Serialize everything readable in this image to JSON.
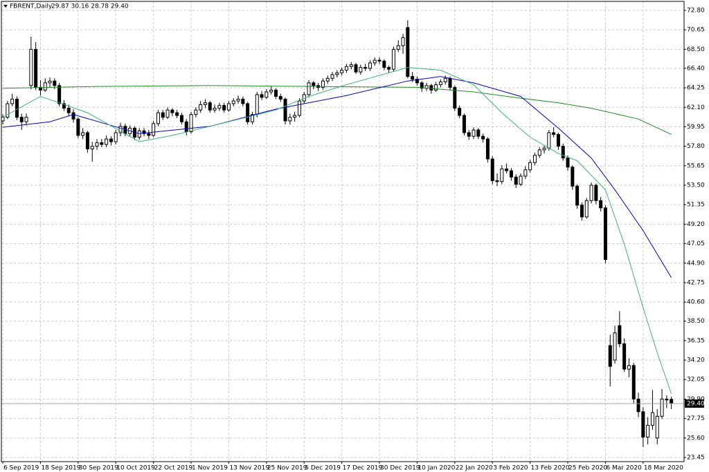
{
  "chart_data": {
    "type": "candlestick",
    "title": "FBRENT,Daily",
    "ohlc_label": "29.87 30.16 28.78 29.40",
    "xlim": [
      -0.3,
      144.7
    ],
    "ylim": [
      22.99,
      73.79
    ],
    "grid": true,
    "up_color": "#ffffff",
    "down_color": "#000000",
    "xticks": [
      {
        "value": 0,
        "label": "6 Sep 2019"
      },
      {
        "value": 8,
        "label": "18 Sep 2019"
      },
      {
        "value": 16,
        "label": "30 Sep 2019"
      },
      {
        "value": 24,
        "label": "10 Oct 2019"
      },
      {
        "value": 32,
        "label": "22 Oct 2019"
      },
      {
        "value": 40,
        "label": "1 Nov 2019"
      },
      {
        "value": 48,
        "label": "13 Nov 2019"
      },
      {
        "value": 56,
        "label": "25 Nov 2019"
      },
      {
        "value": 64,
        "label": "5 Dec 2019"
      },
      {
        "value": 72,
        "label": "17 Dec 2019"
      },
      {
        "value": 80,
        "label": "30 Dec 2019"
      },
      {
        "value": 88,
        "label": "10 Jan 2020"
      },
      {
        "value": 96,
        "label": "22 Jan 2020"
      },
      {
        "value": 104,
        "label": "3 Feb 2020"
      },
      {
        "value": 112,
        "label": "13 Feb 2020"
      },
      {
        "value": 120,
        "label": "25 Feb 2020"
      },
      {
        "value": 128,
        "label": "6 Mar 2020"
      },
      {
        "value": 136,
        "label": "18 Mar 2020"
      }
    ],
    "yticks": [
      {
        "value": 72.8,
        "label": "72.80"
      },
      70.65,
      {
        "value": 68.5,
        "label": "68.50"
      },
      {
        "value": 66.4,
        "label": "66.40"
      },
      {
        "value": 64.25,
        "label": "64.25"
      },
      {
        "value": 62.1,
        "label": "62.10"
      },
      59.95,
      {
        "value": 57.8,
        "label": "57.80"
      },
      55.65,
      {
        "value": 53.5,
        "label": "53.50"
      },
      51.35,
      {
        "value": 49.2,
        "label": "49.20"
      },
      47.05,
      {
        "value": 44.9,
        "label": "44.90"
      },
      42.75,
      {
        "value": 40.6,
        "label": "40.60"
      },
      {
        "value": 38.5,
        "label": "38.50"
      },
      36.35,
      {
        "value": 34.2,
        "label": "34.20"
      },
      32.05,
      {
        "value": 29.9,
        "label": "29.90"
      },
      27.75,
      {
        "value": 25.6,
        "label": "25.60"
      },
      23.45
    ],
    "last_price": {
      "value": 29.4,
      "label": "29.40"
    },
    "candles": [
      [
        60.6,
        61.3,
        60.2,
        61.0
      ],
      [
        61.0,
        62.8,
        60.8,
        62.5
      ],
      [
        62.5,
        63.6,
        62.2,
        63.0
      ],
      [
        63.0,
        63.3,
        60.7,
        61.0
      ],
      [
        61.0,
        61.4,
        59.6,
        60.5
      ],
      [
        60.5,
        61.4,
        60.1,
        61.0
      ],
      [
        64.5,
        69.9,
        64.1,
        68.5
      ],
      [
        68.5,
        69.3,
        64.0,
        64.3
      ],
      [
        64.3,
        65.1,
        63.4,
        64.0
      ],
      [
        64.0,
        65.3,
        63.8,
        64.8
      ],
      [
        64.8,
        65.4,
        64.3,
        65.0
      ],
      [
        65.0,
        65.3,
        64.1,
        64.5
      ],
      [
        64.5,
        64.8,
        62.2,
        62.5
      ],
      [
        62.5,
        62.9,
        61.7,
        62.0
      ],
      [
        62.0,
        62.4,
        61.1,
        61.5
      ],
      [
        61.5,
        61.9,
        60.4,
        60.8
      ],
      [
        60.8,
        61.0,
        58.7,
        59.0
      ],
      [
        59.0,
        59.8,
        58.6,
        59.3
      ],
      [
        59.3,
        59.5,
        57.1,
        57.5
      ],
      [
        57.5,
        58.3,
        56.1,
        57.8
      ],
      [
        57.8,
        58.6,
        57.4,
        58.2
      ],
      [
        58.2,
        58.6,
        57.7,
        58.0
      ],
      [
        58.0,
        59.0,
        57.7,
        58.6
      ],
      [
        58.6,
        58.9,
        57.9,
        58.3
      ],
      [
        58.3,
        59.6,
        58.0,
        59.3
      ],
      [
        59.3,
        60.4,
        58.9,
        60.0
      ],
      [
        60.0,
        60.3,
        58.9,
        59.2
      ],
      [
        59.2,
        60.1,
        58.9,
        59.8
      ],
      [
        59.8,
        60.0,
        58.5,
        58.8
      ],
      [
        58.8,
        59.8,
        58.5,
        59.5
      ],
      [
        59.5,
        59.8,
        58.9,
        59.2
      ],
      [
        59.2,
        59.6,
        58.6,
        59.0
      ],
      [
        59.0,
        60.6,
        58.8,
        60.3
      ],
      [
        60.3,
        61.8,
        60.0,
        61.5
      ],
      [
        61.5,
        61.8,
        60.7,
        61.0
      ],
      [
        61.0,
        62.1,
        60.8,
        61.8
      ],
      [
        61.8,
        62.0,
        61.1,
        61.5
      ],
      [
        61.5,
        61.8,
        60.9,
        61.2
      ],
      [
        61.2,
        61.5,
        60.2,
        60.5
      ],
      [
        60.5,
        60.8,
        59.0,
        59.4
      ],
      [
        59.4,
        61.6,
        59.2,
        61.3
      ],
      [
        61.3,
        62.1,
        61.0,
        61.8
      ],
      [
        61.8,
        62.8,
        61.5,
        62.4
      ],
      [
        62.4,
        63.0,
        62.0,
        62.6
      ],
      [
        62.6,
        62.8,
        61.5,
        61.8
      ],
      [
        61.8,
        62.4,
        61.5,
        62.0
      ],
      [
        62.0,
        62.6,
        61.7,
        62.3
      ],
      [
        62.3,
        62.6,
        61.5,
        61.8
      ],
      [
        61.8,
        62.8,
        61.6,
        62.5
      ],
      [
        62.5,
        63.1,
        62.2,
        62.8
      ],
      [
        62.8,
        63.4,
        62.5,
        63.0
      ],
      [
        63.0,
        63.3,
        62.2,
        62.5
      ],
      [
        62.5,
        62.7,
        60.2,
        60.5
      ],
      [
        60.5,
        61.6,
        60.2,
        61.3
      ],
      [
        61.3,
        63.8,
        61.0,
        63.5
      ],
      [
        63.5,
        63.9,
        62.9,
        63.2
      ],
      [
        63.2,
        64.1,
        63.0,
        63.8
      ],
      [
        63.8,
        64.4,
        63.5,
        64.0
      ],
      [
        64.0,
        64.2,
        63.0,
        63.3
      ],
      [
        63.3,
        63.6,
        62.7,
        63.0
      ],
      [
        63.0,
        63.2,
        60.2,
        60.6
      ],
      [
        60.6,
        61.4,
        60.2,
        61.0
      ],
      [
        61.0,
        61.6,
        60.5,
        61.2
      ],
      [
        61.2,
        63.1,
        61.0,
        62.8
      ],
      [
        62.8,
        63.8,
        62.5,
        63.5
      ],
      [
        63.5,
        65.1,
        63.2,
        64.8
      ],
      [
        64.8,
        65.0,
        64.1,
        64.5
      ],
      [
        64.5,
        64.8,
        63.9,
        64.3
      ],
      [
        64.3,
        65.3,
        64.0,
        65.0
      ],
      [
        65.0,
        65.6,
        64.7,
        65.3
      ],
      [
        65.3,
        66.0,
        65.0,
        65.7
      ],
      [
        65.7,
        66.2,
        65.4,
        65.9
      ],
      [
        65.9,
        66.5,
        65.6,
        66.2
      ],
      [
        66.2,
        66.9,
        65.9,
        66.6
      ],
      [
        66.6,
        67.1,
        66.3,
        66.8
      ],
      [
        66.8,
        67.0,
        65.8,
        66.0
      ],
      [
        66.0,
        66.8,
        65.7,
        66.5
      ],
      [
        66.5,
        66.9,
        66.1,
        66.4
      ],
      [
        66.4,
        67.3,
        66.1,
        67.0
      ],
      [
        67.0,
        67.6,
        66.7,
        67.3
      ],
      [
        67.3,
        67.6,
        66.9,
        67.2
      ],
      [
        67.2,
        67.4,
        66.2,
        66.5
      ],
      [
        66.5,
        66.7,
        65.9,
        66.3
      ],
      [
        66.3,
        68.8,
        66.0,
        68.5
      ],
      [
        68.5,
        69.5,
        68.2,
        68.9
      ],
      [
        68.9,
        70.2,
        68.0,
        69.8
      ],
      [
        70.9,
        71.7,
        65.3,
        65.5
      ],
      [
        65.5,
        66.0,
        64.9,
        65.2
      ],
      [
        65.2,
        65.5,
        64.5,
        64.8
      ],
      [
        64.8,
        65.0,
        63.8,
        64.2
      ],
      [
        64.2,
        64.8,
        63.9,
        64.5
      ],
      [
        64.5,
        64.7,
        63.6,
        64.0
      ],
      [
        64.0,
        64.9,
        63.8,
        64.6
      ],
      [
        64.6,
        65.2,
        64.3,
        64.9
      ],
      [
        64.9,
        65.6,
        64.6,
        65.3
      ],
      [
        65.3,
        65.5,
        64.0,
        64.3
      ],
      [
        64.3,
        64.5,
        61.7,
        62.0
      ],
      [
        62.0,
        62.3,
        60.9,
        61.2
      ],
      [
        61.2,
        61.4,
        59.0,
        59.3
      ],
      [
        59.3,
        59.6,
        58.5,
        58.9
      ],
      [
        58.9,
        59.9,
        58.6,
        59.6
      ],
      [
        59.6,
        59.8,
        58.6,
        58.9
      ],
      [
        58.9,
        59.2,
        58.2,
        58.6
      ],
      [
        58.6,
        58.8,
        56.0,
        56.4
      ],
      [
        56.4,
        56.7,
        53.6,
        54.0
      ],
      [
        54.0,
        54.8,
        53.4,
        53.9
      ],
      [
        53.9,
        55.7,
        53.6,
        55.3
      ],
      [
        55.3,
        55.9,
        54.8,
        55.1
      ],
      [
        55.1,
        55.4,
        54.0,
        54.4
      ],
      [
        54.4,
        54.7,
        53.2,
        53.6
      ],
      [
        53.6,
        54.8,
        53.4,
        54.5
      ],
      [
        54.5,
        55.6,
        54.2,
        55.2
      ],
      [
        55.2,
        56.3,
        54.9,
        56.0
      ],
      [
        56.0,
        57.1,
        55.7,
        56.8
      ],
      [
        56.8,
        57.7,
        56.5,
        57.4
      ],
      [
        57.4,
        57.9,
        57.0,
        57.6
      ],
      [
        57.6,
        59.6,
        57.3,
        59.3
      ],
      [
        59.3,
        59.9,
        58.8,
        59.1
      ],
      [
        59.1,
        59.3,
        57.4,
        57.8
      ],
      [
        57.8,
        58.1,
        56.2,
        56.5
      ],
      [
        56.5,
        56.8,
        55.1,
        55.5
      ],
      [
        55.5,
        55.7,
        53.0,
        53.4
      ],
      [
        53.4,
        53.6,
        50.9,
        51.3
      ],
      [
        51.3,
        51.6,
        49.6,
        50.0
      ],
      [
        50.0,
        52.1,
        49.8,
        51.8
      ],
      [
        51.8,
        53.8,
        51.5,
        53.5
      ],
      [
        53.5,
        53.7,
        51.4,
        51.8
      ],
      [
        51.8,
        52.2,
        50.6,
        51.0
      ],
      [
        51.0,
        51.3,
        44.9,
        45.3
      ],
      [
        35.8,
        37.0,
        31.3,
        33.5
      ],
      [
        34.2,
        38.0,
        33.8,
        37.2
      ],
      [
        38.0,
        39.6,
        35.6,
        36.0
      ],
      [
        36.0,
        36.6,
        32.9,
        33.2
      ],
      [
        33.2,
        34.4,
        32.3,
        33.6
      ],
      [
        33.6,
        33.9,
        29.4,
        29.9
      ],
      [
        29.9,
        30.6,
        27.9,
        28.5
      ],
      [
        28.5,
        29.0,
        24.6,
        25.7
      ],
      [
        25.7,
        27.9,
        24.9,
        27.0
      ],
      [
        27.0,
        30.9,
        26.5,
        28.4
      ],
      [
        25.6,
        28.8,
        24.9,
        28.0
      ],
      [
        28.0,
        31.0,
        27.7,
        29.9
      ],
      [
        29.9,
        30.3,
        28.9,
        29.8
      ],
      [
        29.87,
        30.16,
        28.78,
        29.4
      ]
    ],
    "series": [
      {
        "color": "#228b22",
        "x": [
          0,
          20,
          44,
          66,
          88,
          100,
          110,
          118,
          125,
          135,
          142
        ],
        "values": [
          64.2,
          64.4,
          64.5,
          64.4,
          64.3,
          63.8,
          63.1,
          62.6,
          62.0,
          60.8,
          59.1
        ]
      },
      {
        "color": "#0000cd",
        "x": [
          0,
          10,
          15,
          29,
          44,
          58,
          73,
          86,
          93,
          100,
          110,
          118,
          125,
          130,
          136,
          142
        ],
        "values": [
          59.9,
          60.5,
          61.3,
          59.2,
          60.0,
          61.9,
          63.4,
          65.0,
          65.5,
          64.8,
          63.3,
          59.8,
          56.5,
          53.0,
          48.5,
          43.3
        ]
      },
      {
        "color": "#3cb371",
        "x": [
          0,
          8,
          12,
          18,
          29,
          36,
          44,
          58,
          65,
          73,
          86,
          93,
          100,
          106,
          112,
          118,
          122,
          128,
          132,
          136,
          139,
          142
        ],
        "values": [
          61.0,
          63.3,
          62.6,
          61.5,
          58.3,
          59.0,
          60.0,
          61.8,
          63.3,
          64.6,
          66.5,
          66.2,
          64.6,
          61.5,
          58.8,
          57.0,
          56.2,
          53.0,
          47.0,
          40.0,
          35.0,
          30.5
        ]
      }
    ]
  }
}
